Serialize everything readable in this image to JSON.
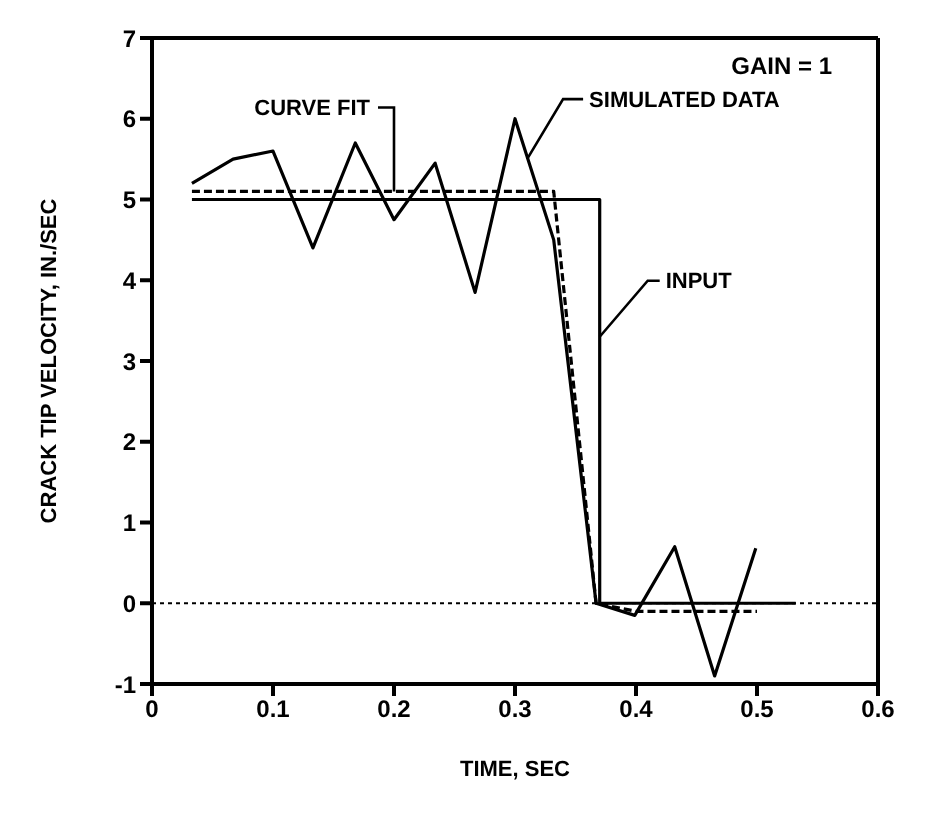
{
  "chart_data": {
    "type": "line",
    "xlabel": "TIME, SEC",
    "ylabel": "CRACK TIP VELOCITY, IN./SEC",
    "xlim": [
      0,
      0.6
    ],
    "xticks": [
      0,
      0.1,
      0.2,
      0.3,
      0.4,
      0.5,
      0.6
    ],
    "ylim": [
      -1,
      7
    ],
    "yticks": [
      -1,
      0,
      1,
      2,
      3,
      4,
      5,
      6,
      7
    ],
    "marker": "none",
    "series": [
      {
        "color": "#000000",
        "line_style": "solid",
        "x": [
          0.033,
          0.067,
          0.1,
          0.133,
          0.168,
          0.2,
          0.234,
          0.267,
          0.3,
          0.332,
          0.367,
          0.399,
          0.432,
          0.465,
          0.499
        ],
        "values": [
          5.2,
          5.5,
          5.6,
          4.4,
          5.7,
          4.75,
          5.45,
          3.85,
          6.0,
          4.5,
          0,
          -0.15,
          0.7,
          -0.9,
          0.68
        ]
      },
      {
        "color": "#000000",
        "line_style": "dashed",
        "x": [
          0.033,
          0.332,
          0.367,
          0.4,
          0.5
        ],
        "values": [
          5.1,
          5.1,
          0,
          -0.1,
          -0.1
        ]
      },
      {
        "color": "#000000",
        "line_style": "solid",
        "x": [
          0.033,
          0.37,
          0.37,
          0.532
        ],
        "values": [
          5,
          5,
          0,
          0
        ]
      }
    ],
    "ref_lines": [
      {
        "axis": "y",
        "value": 0,
        "line_style": "dotted",
        "color": "#000000"
      }
    ],
    "annotations": [
      "GAIN = 1",
      {
        "text": "CURVE FIT",
        "x": 0.2,
        "y": 5.1
      },
      {
        "text": "SIMULATED DATA",
        "x": 0.31,
        "y": 5.5
      },
      {
        "text": "INPUT",
        "x": 0.37,
        "y": 3.3
      }
    ]
  }
}
